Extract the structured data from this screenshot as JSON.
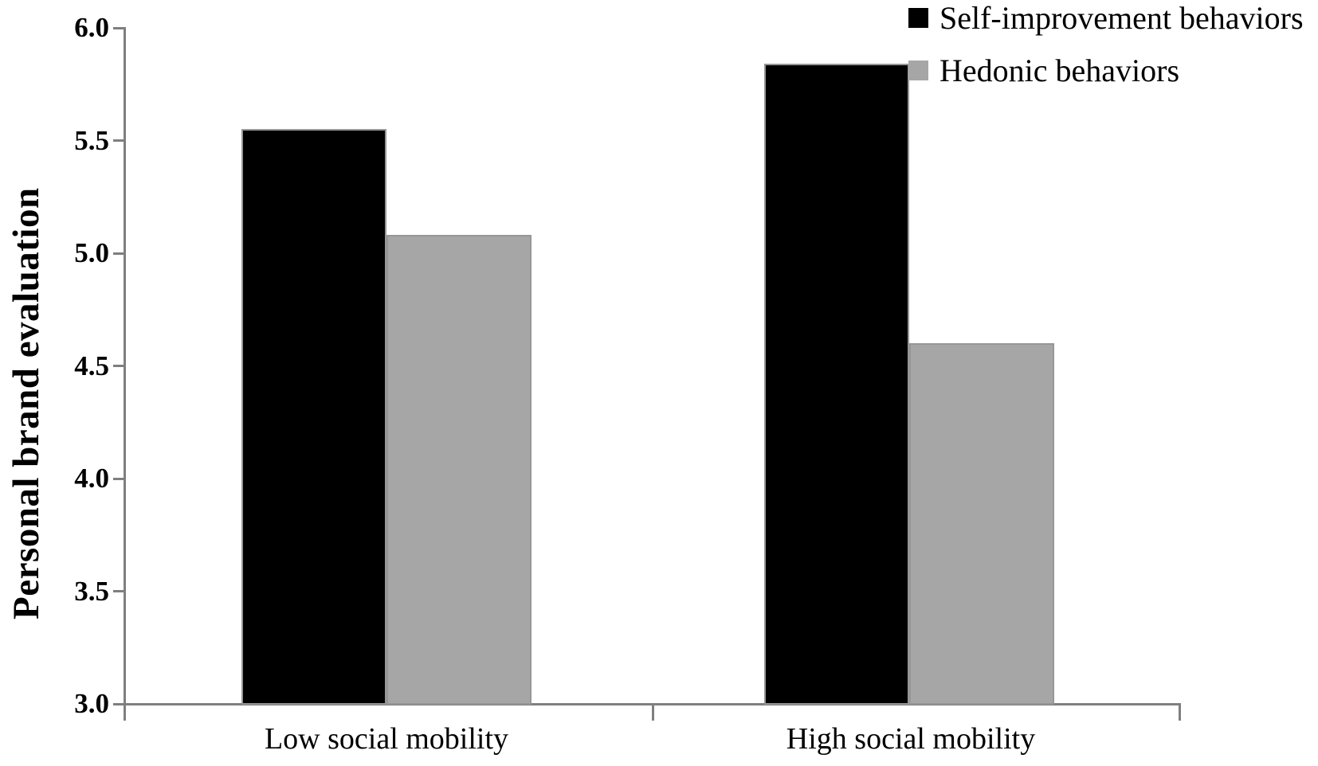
{
  "figure": {
    "background": "#ffffff",
    "axis_color": "#7f7f7f",
    "text_color": "#000000"
  },
  "axes": {
    "y_title": "Personal brand evaluation",
    "y_tick_labels": [
      "6.0",
      "5.5",
      "5.0",
      "4.5",
      "4.0",
      "3.5",
      "3.0"
    ]
  },
  "legend": {
    "items": [
      {
        "label": "Self-improvement behaviors",
        "color": "#000000"
      },
      {
        "label": "Hedonic behaviors",
        "color": "#a6a6a6"
      }
    ]
  },
  "chart_data": {
    "type": "bar",
    "title": "",
    "xlabel": "",
    "ylabel": "Personal brand evaluation",
    "categories": [
      "Low social mobility",
      "High social mobility"
    ],
    "series": [
      {
        "name": "Self-improvement behaviors",
        "color": "#000000",
        "values": [
          5.55,
          5.84
        ]
      },
      {
        "name": "Hedonic behaviors",
        "color": "#a6a6a6",
        "values": [
          5.08,
          4.6
        ]
      }
    ],
    "ylim": [
      3.0,
      6.0
    ],
    "yticks": [
      6.0,
      5.5,
      5.0,
      4.5,
      4.0,
      3.5,
      3.0
    ],
    "ytick_step": 0.5,
    "grid": false,
    "legend_position": "top-right",
    "bar_outline_color": "#969696"
  }
}
